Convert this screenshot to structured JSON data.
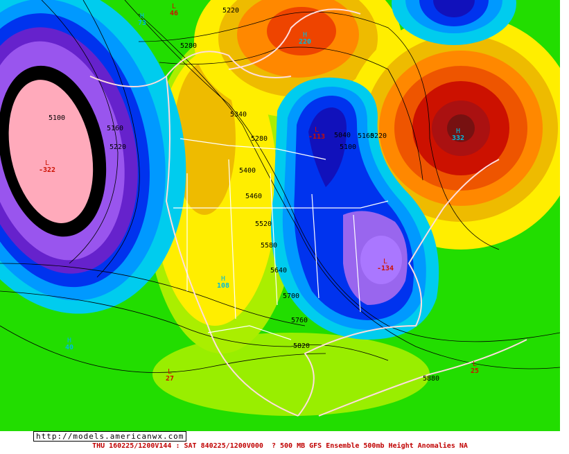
{
  "contours": [
    "5220",
    "5280",
    "5340",
    "5280",
    "5400",
    "5460",
    "5520",
    "5580",
    "5640",
    "5700",
    "5760",
    "5820",
    "5880",
    "5100",
    "5160",
    "5220",
    "5040",
    "5100",
    "5160",
    "5220"
  ],
  "centers": [
    {
      "letter": "H",
      "value": "73"
    },
    {
      "letter": "L",
      "value": "46"
    },
    {
      "letter": "H",
      "value": "220"
    },
    {
      "letter": "H",
      "value": "332"
    },
    {
      "letter": "L",
      "value": "-113"
    },
    {
      "letter": "L",
      "value": "-322"
    },
    {
      "letter": "L",
      "value": "-134"
    },
    {
      "letter": "H",
      "value": "108"
    },
    {
      "letter": "H",
      "value": "40"
    },
    {
      "letter": "L",
      "value": "27"
    },
    {
      "letter": "L",
      "value": "25"
    }
  ],
  "url": "http://models.americanwx.com",
  "caption": "THU 160225/1200V144 : SAT 840225/1200V000  ? 500 MB GFS Ensemble 500mb Height Anomalies NA"
}
